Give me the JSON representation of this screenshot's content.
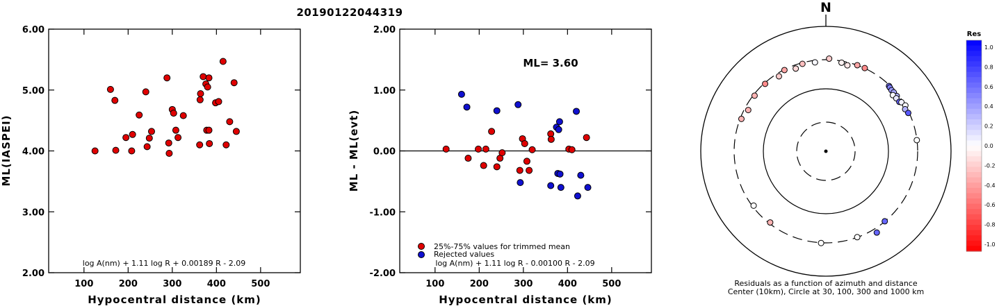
{
  "title": "20190122044319",
  "chart_data": [
    {
      "type": "scatter",
      "xlabel": "Hypocentral distance (km)",
      "ylabel": "ML(IASPEI)",
      "xlim": [
        20,
        590
      ],
      "ylim": [
        2.0,
        6.0
      ],
      "x_ticks": [
        "100",
        "200",
        "300",
        "400",
        "500"
      ],
      "y_ticks": [
        "2.00",
        "3.00",
        "4.00",
        "5.00",
        "6.00"
      ],
      "formula": "log A(nm) + 1.11 log R + 0.00189 R - 2.09",
      "points": [
        {
          "x": 125,
          "y": 4.0
        },
        {
          "x": 160,
          "y": 5.01
        },
        {
          "x": 170,
          "y": 4.83
        },
        {
          "x": 172,
          "y": 4.01
        },
        {
          "x": 195,
          "y": 4.22
        },
        {
          "x": 208,
          "y": 4.0
        },
        {
          "x": 210,
          "y": 4.27
        },
        {
          "x": 225,
          "y": 4.59
        },
        {
          "x": 240,
          "y": 4.97
        },
        {
          "x": 243,
          "y": 4.07
        },
        {
          "x": 248,
          "y": 4.21
        },
        {
          "x": 253,
          "y": 4.32
        },
        {
          "x": 288,
          "y": 5.2
        },
        {
          "x": 292,
          "y": 4.13
        },
        {
          "x": 293,
          "y": 3.96
        },
        {
          "x": 300,
          "y": 4.68
        },
        {
          "x": 303,
          "y": 4.62
        },
        {
          "x": 308,
          "y": 4.34
        },
        {
          "x": 313,
          "y": 4.22
        },
        {
          "x": 325,
          "y": 4.58
        },
        {
          "x": 362,
          "y": 4.1
        },
        {
          "x": 363,
          "y": 4.84
        },
        {
          "x": 364,
          "y": 4.94
        },
        {
          "x": 370,
          "y": 5.22
        },
        {
          "x": 376,
          "y": 5.1
        },
        {
          "x": 378,
          "y": 4.34
        },
        {
          "x": 380,
          "y": 5.05
        },
        {
          "x": 383,
          "y": 5.2
        },
        {
          "x": 383,
          "y": 4.34
        },
        {
          "x": 384,
          "y": 4.12
        },
        {
          "x": 398,
          "y": 4.79
        },
        {
          "x": 405,
          "y": 4.81
        },
        {
          "x": 415,
          "y": 5.47
        },
        {
          "x": 422,
          "y": 4.1
        },
        {
          "x": 430,
          "y": 4.48
        },
        {
          "x": 440,
          "y": 5.12
        },
        {
          "x": 445,
          "y": 4.32
        }
      ]
    },
    {
      "type": "scatter",
      "xlabel": "Hypocentral distance (km)",
      "ylabel": "ML - ML(evt)",
      "xlim": [
        20,
        590
      ],
      "ylim": [
        -2.0,
        2.0
      ],
      "x_ticks": [
        "100",
        "200",
        "300",
        "400",
        "500"
      ],
      "y_ticks": [
        "-2.00",
        "-1.00",
        "0.00",
        "1.00",
        "2.00"
      ],
      "reference_line": 0.0,
      "annotation": "ML=  3.60",
      "formula": "log A(nm) + 1.11 log R - 0.00100 R - 2.09",
      "legend": [
        "25%-75% values for trimmed mean",
        "Rejected values"
      ],
      "legend_position": "bottom-left",
      "series": [
        {
          "name": "25%-75% values for trimmed mean",
          "color": "#e00000",
          "points": [
            {
              "x": 125,
              "y": 0.03
            },
            {
              "x": 175,
              "y": -0.12
            },
            {
              "x": 198,
              "y": 0.03
            },
            {
              "x": 210,
              "y": -0.24
            },
            {
              "x": 215,
              "y": 0.03
            },
            {
              "x": 228,
              "y": 0.32
            },
            {
              "x": 240,
              "y": -0.26
            },
            {
              "x": 247,
              "y": -0.12
            },
            {
              "x": 252,
              "y": -0.03
            },
            {
              "x": 292,
              "y": -0.32
            },
            {
              "x": 298,
              "y": 0.2
            },
            {
              "x": 303,
              "y": 0.12
            },
            {
              "x": 308,
              "y": -0.17
            },
            {
              "x": 313,
              "y": -0.32
            },
            {
              "x": 320,
              "y": 0.02
            },
            {
              "x": 362,
              "y": 0.28
            },
            {
              "x": 363,
              "y": 0.19
            },
            {
              "x": 403,
              "y": 0.03
            },
            {
              "x": 410,
              "y": 0.02
            },
            {
              "x": 443,
              "y": 0.22
            }
          ]
        },
        {
          "name": "Rejected values",
          "color": "#1010d0",
          "points": [
            {
              "x": 160,
              "y": 0.93
            },
            {
              "x": 172,
              "y": 0.72
            },
            {
              "x": 240,
              "y": 0.66
            },
            {
              "x": 288,
              "y": 0.76
            },
            {
              "x": 293,
              "y": -0.52
            },
            {
              "x": 362,
              "y": -0.57
            },
            {
              "x": 375,
              "y": 0.39
            },
            {
              "x": 378,
              "y": -0.37
            },
            {
              "x": 380,
              "y": 0.35
            },
            {
              "x": 382,
              "y": 0.48
            },
            {
              "x": 383,
              "y": -0.38
            },
            {
              "x": 385,
              "y": -0.6
            },
            {
              "x": 420,
              "y": 0.65
            },
            {
              "x": 423,
              "y": -0.74
            },
            {
              "x": 430,
              "y": -0.4
            },
            {
              "x": 446,
              "y": -0.6
            }
          ]
        }
      ]
    },
    {
      "type": "scatter",
      "projection": "polar",
      "north_label": "N",
      "caption_line1": "Residuals as a function of azimuth and distance",
      "caption_line2": "Center (10km), Circle at 30, 100, 300 and 1000 km",
      "rings_km": [
        30,
        100,
        300,
        1000
      ],
      "ring_styles": [
        "dashed",
        "solid",
        "dashed",
        "solid"
      ],
      "colorbar": {
        "title": "Res",
        "ticks": [
          "1.0",
          "0.8",
          "0.6",
          "0.4",
          "0.2",
          "0.0",
          "-0.2",
          "-0.4",
          "-0.6",
          "-0.8",
          "-1.0"
        ],
        "range": [
          -1.0,
          1.0
        ],
        "positive_color": "#0000ff",
        "negative_color": "#ff0000"
      },
      "points": [
        {
          "az": 353,
          "dist_km": 278,
          "res": 0.03
        },
        {
          "az": 2,
          "dist_km": 312,
          "res": -0.2
        },
        {
          "az": 345,
          "dist_km": 288,
          "res": -0.25
        },
        {
          "az": 340,
          "dist_km": 262,
          "res": -0.15
        },
        {
          "az": 333,
          "dist_km": 295,
          "res": -0.35
        },
        {
          "az": 328,
          "dist_km": 266,
          "res": -0.2
        },
        {
          "az": 318,
          "dist_km": 290,
          "res": -0.45
        },
        {
          "az": 308,
          "dist_km": 286,
          "res": -0.3
        },
        {
          "az": 298,
          "dist_km": 260,
          "res": -0.3
        },
        {
          "az": 291,
          "dist_km": 286,
          "res": -0.3
        },
        {
          "az": 10,
          "dist_km": 282,
          "res": -0.05
        },
        {
          "az": 14,
          "dist_km": 268,
          "res": -0.1
        },
        {
          "az": 20,
          "dist_km": 300,
          "res": -0.35
        },
        {
          "az": 25,
          "dist_km": 302,
          "res": -0.45
        },
        {
          "az": 44,
          "dist_km": 290,
          "res": 0.55
        },
        {
          "az": 45,
          "dist_km": 285,
          "res": 0.5
        },
        {
          "az": 47,
          "dist_km": 278,
          "res": 0.4
        },
        {
          "az": 49,
          "dist_km": 280,
          "res": 0.35
        },
        {
          "az": 52,
          "dist_km": 280,
          "res": 0.3
        },
        {
          "az": 50,
          "dist_km": 255,
          "res": 0.02
        },
        {
          "az": 53,
          "dist_km": 262,
          "res": 0.1
        },
        {
          "az": 56,
          "dist_km": 266,
          "res": 0.62
        },
        {
          "az": 57,
          "dist_km": 282,
          "res": 0.05
        },
        {
          "az": 60,
          "dist_km": 300,
          "res": 0.02
        },
        {
          "az": 62,
          "dist_km": 278,
          "res": 0.3
        },
        {
          "az": 65,
          "dist_km": 290,
          "res": 0.65
        },
        {
          "az": 83,
          "dist_km": 298,
          "res": 0.0
        },
        {
          "az": 140,
          "dist_km": 298,
          "res": 0.6
        },
        {
          "az": 160,
          "dist_km": 298,
          "res": 0.0
        },
        {
          "az": 148,
          "dist_km": 350,
          "res": 0.6
        },
        {
          "az": 183,
          "dist_km": 303,
          "res": 0.0
        },
        {
          "az": 218,
          "dist_km": 286,
          "res": -0.3
        },
        {
          "az": 233,
          "dist_km": 286,
          "res": 0.0
        }
      ]
    }
  ]
}
